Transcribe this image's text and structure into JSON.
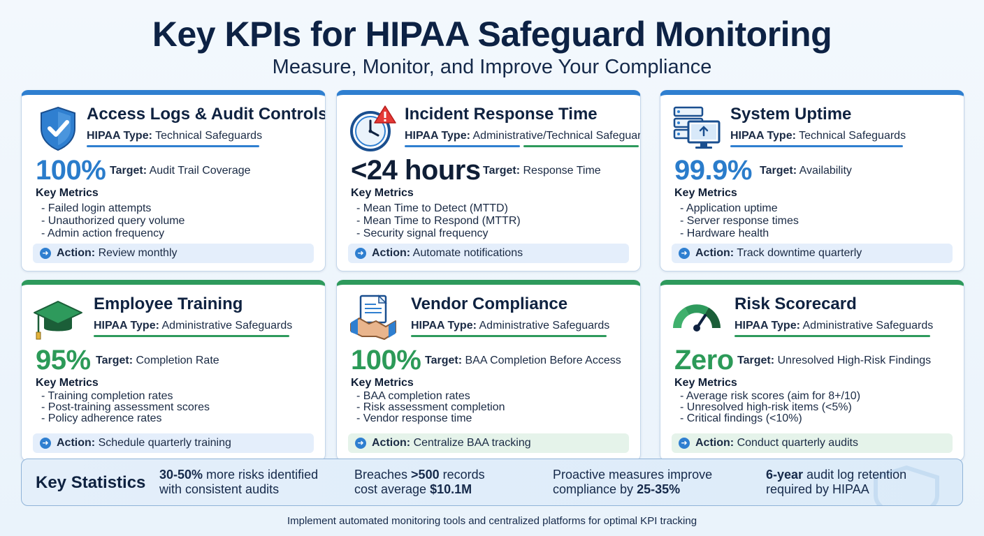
{
  "header": {
    "title": "Key KPIs for HIPAA Safeguard Monitoring",
    "subtitle": "Measure, Monitor, and Improve Your Compliance"
  },
  "common": {
    "type_label": "HIPAA Type:",
    "target_label": "Target:",
    "key_metrics_label": "Key Metrics",
    "action_label": "Action:"
  },
  "cards": [
    {
      "title": "Access Logs & Audit Controls",
      "type": "Technical Safeguards",
      "value": "100%",
      "target": "Audit Trail Coverage",
      "metrics": [
        "- Failed login attempts",
        "- Unauthorized query volume",
        "- Admin action frequency"
      ],
      "action": "Review monthly",
      "icon": "shield-check-icon"
    },
    {
      "title": "Incident Response Time",
      "type": "Administrative/Technical Safeguards",
      "value": "<24 hours",
      "target": "Response Time",
      "metrics": [
        "- Mean Time to Detect (MTTD)",
        "- Mean Time to Respond (MTTR)",
        "- Security signal frequency"
      ],
      "action": "Automate notifications",
      "icon": "clock-alert-icon"
    },
    {
      "title": "System Uptime",
      "type": "Technical Safeguards",
      "value": "99.9%",
      "target": "Availability",
      "metrics": [
        "- Application uptime",
        "- Server response times",
        "- Hardware health"
      ],
      "action": "Track downtime quarterly",
      "icon": "server-monitor-icon"
    },
    {
      "title": "Employee Training",
      "type": "Administrative Safeguards",
      "value": "95%",
      "target": "Completion Rate",
      "metrics": [
        "- Training completion rates",
        "- Post-training assessment scores",
        "- Policy adherence rates"
      ],
      "action": "Schedule quarterly training",
      "icon": "graduation-cap-icon"
    },
    {
      "title": "Vendor Compliance",
      "type": "Administrative Safeguards",
      "value": "100%",
      "target": "BAA Completion Before Access",
      "metrics": [
        "- BAA completion rates",
        "- Risk assessment completion",
        "- Vendor response time"
      ],
      "action": "Centralize BAA tracking",
      "icon": "handshake-document-icon"
    },
    {
      "title": "Risk Scorecard",
      "type": "Administrative Safeguards",
      "value": "Zero",
      "target": "Unresolved High-Risk Findings",
      "metrics": [
        "- Average risk scores (aim for 8+/10)",
        "- Unresolved high-risk items (<5%)",
        "- Critical findings (<10%)"
      ],
      "action": "Conduct quarterly audits",
      "icon": "gauge-icon"
    }
  ],
  "stats": {
    "title": "Key Statistics",
    "s1_bold": "30-50%",
    "s1_rest": " more risks identified",
    "s1_line2": "with consistent audits",
    "s2_a": "Breaches ",
    "s2_bold": ">500",
    "s2_b": " records",
    "s2_c": "cost average ",
    "s2_bold2": "$10.1M",
    "s3_line1": "Proactive measures improve",
    "s3_a": "compliance by ",
    "s3_bold": "25-35%",
    "s4_bold": "6-year",
    "s4_rest": " audit log retention",
    "s4_line2": "required by HIPAA"
  },
  "footer": "Implement automated monitoring tools and centralized platforms for optimal KPI tracking",
  "colors": {
    "blue": "#2f7fd0",
    "green": "#2e9a5c",
    "navy": "#0d2244"
  }
}
